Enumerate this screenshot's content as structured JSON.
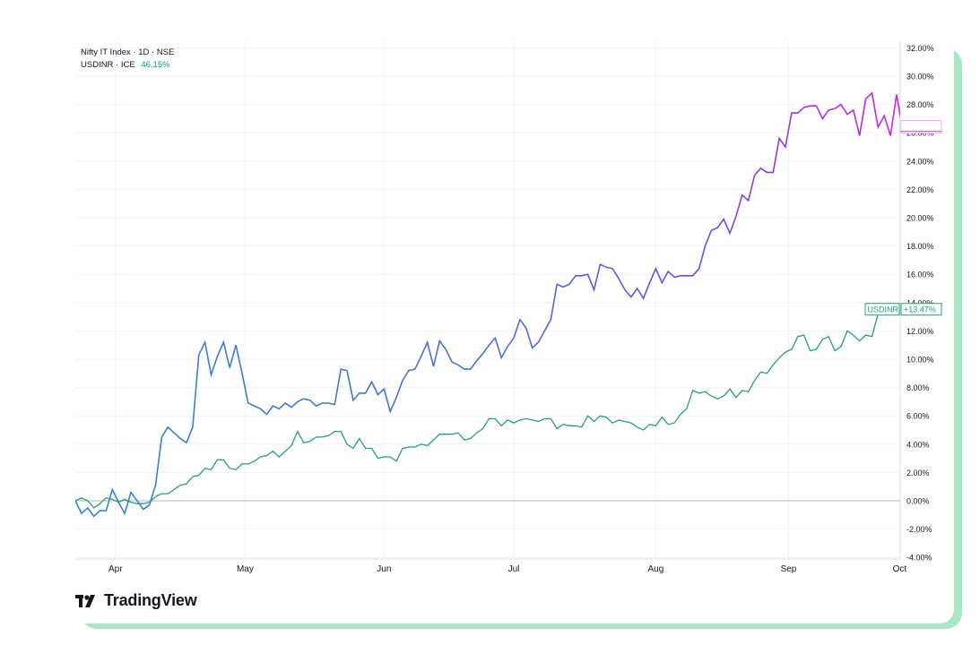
{
  "legend": {
    "main": "Nifty IT Index · 1D · NSE",
    "compare": "USDINR · ICE",
    "compare_value": "46.15%"
  },
  "brand": {
    "name": "TradingView"
  },
  "colors": {
    "nifty_start": "#2f86d6",
    "nifty_end": "#d21fe6",
    "nifty_mid": "#7048e8",
    "usdinr": "#22a07a",
    "early": "#15b8d8",
    "zero_line": "#b2b5be"
  },
  "price_tag": {
    "label": "USDINR",
    "value": "+13.47%"
  },
  "chart_data": {
    "type": "line",
    "title": "",
    "xlabel": "",
    "ylabel": "",
    "ylim": [
      -4,
      32
    ],
    "yticks": [
      "32.00%",
      "30.00%",
      "28.00%",
      "26.00%",
      "24.00%",
      "22.00%",
      "20.00%",
      "18.00%",
      "16.00%",
      "14.00%",
      "12.00%",
      "10.00%",
      "8.00%",
      "6.00%",
      "4.00%",
      "2.00%",
      "0.00%",
      "-2.00%",
      "-4.00%"
    ],
    "ytick_values": [
      32,
      30,
      28,
      26,
      24,
      22,
      20,
      18,
      16,
      14,
      12,
      10,
      8,
      6,
      4,
      2,
      0,
      -2,
      -4
    ],
    "x_range": [
      0,
      133
    ],
    "months": [
      {
        "label": "Apr",
        "x": 6.5
      },
      {
        "label": "May",
        "x": 27.5
      },
      {
        "label": "Jun",
        "x": 50
      },
      {
        "label": "Jul",
        "x": 71
      },
      {
        "label": "Aug",
        "x": 94
      },
      {
        "label": "Sep",
        "x": 115.5
      },
      {
        "label": "Oct",
        "x": 133.5
      }
    ],
    "series": [
      {
        "name": "Nifty IT Index",
        "values": [
          0,
          -0.9,
          -0.5,
          -1.1,
          -0.7,
          -0.7,
          0.8,
          -0.1,
          -0.9,
          0.6,
          0,
          -0.6,
          -0.3,
          1.1,
          4.5,
          5.2,
          4.8,
          4.4,
          4.1,
          5.2,
          10.3,
          11.2,
          8.9,
          10.2,
          11.2,
          9.4,
          11,
          9,
          6.9,
          6.7,
          6.5,
          6.1,
          6.7,
          6.5,
          6.9,
          6.6,
          7,
          7.2,
          7.1,
          6.7,
          6.9,
          6.9,
          6.8,
          9.3,
          9.2,
          7.1,
          7.6,
          7.6,
          8.4,
          7.5,
          7.9,
          6.3,
          7.3,
          8.5,
          9.2,
          9.3,
          10.2,
          11.2,
          9.5,
          11.3,
          10.7,
          9.8,
          9.6,
          9.3,
          9.3,
          9.9,
          10.4,
          11,
          11.5,
          10.1,
          10.9,
          11.5,
          12.8,
          12.2,
          10.8,
          11.2,
          12,
          12.8,
          15.3,
          15.1,
          15.3,
          15.9,
          15.9,
          16,
          14.9,
          16.7,
          16.5,
          16.4,
          15.7,
          14.9,
          14.4,
          15,
          14.3,
          15.4,
          16.4,
          15.4,
          16.2,
          15.8,
          15.9,
          15.9,
          15.9,
          16.4,
          18,
          19.1,
          19.3,
          19.9,
          18.9,
          20.1,
          21.6,
          21.2,
          23,
          23.5,
          23.2,
          23.2,
          25.6,
          25,
          27.4,
          27.4,
          27.8,
          27.9,
          27.9,
          27,
          27.6,
          27.7,
          28,
          27.3,
          27.6,
          25.8,
          28.4,
          28.8,
          26.4,
          27.2,
          25.8,
          28.7,
          26.2,
          26.1,
          26.1
        ]
      },
      {
        "name": "USDINR",
        "values": [
          0,
          0.2,
          0,
          -0.5,
          -0.2,
          0.2,
          0.1,
          -0.1,
          0.1,
          -0.1,
          -0.2,
          -0.2,
          -0.1,
          0.3,
          0.5,
          0.5,
          0.8,
          1.1,
          1.2,
          1.7,
          1.8,
          2.3,
          2.2,
          2.9,
          2.9,
          2.3,
          2.2,
          2.6,
          2.6,
          2.8,
          3.1,
          3.2,
          3.5,
          3.1,
          3.5,
          3.9,
          4.9,
          4.1,
          4.2,
          4.5,
          4.5,
          4.6,
          4.9,
          4.9,
          4,
          3.7,
          4.4,
          3.7,
          3.7,
          3,
          3.1,
          3.1,
          2.8,
          3.7,
          3.8,
          3.8,
          4,
          3.9,
          4.3,
          4.7,
          4.7,
          4.7,
          4.8,
          4.3,
          4.4,
          4.8,
          5.1,
          5.8,
          5.8,
          5.3,
          5.7,
          5.5,
          5.7,
          5.8,
          5.7,
          5.6,
          5.8,
          5.8,
          5.1,
          5.4,
          5.3,
          5.3,
          5.2,
          6,
          5.6,
          6,
          5.9,
          5.5,
          5.7,
          5.6,
          5.5,
          5.2,
          5,
          5.4,
          5.3,
          5.9,
          5.4,
          5.5,
          6.1,
          6.5,
          7.8,
          7.6,
          7.7,
          7.4,
          7.2,
          7.4,
          7.9,
          7.3,
          7.8,
          7.7,
          8.5,
          9.1,
          9,
          9.6,
          10.1,
          10.5,
          10.7,
          11.6,
          11.7,
          10.6,
          10.7,
          11.4,
          11.6,
          10.6,
          10.9,
          12,
          11.7,
          11.3,
          11.7,
          11.6,
          13.2,
          13.5
        ]
      }
    ]
  }
}
